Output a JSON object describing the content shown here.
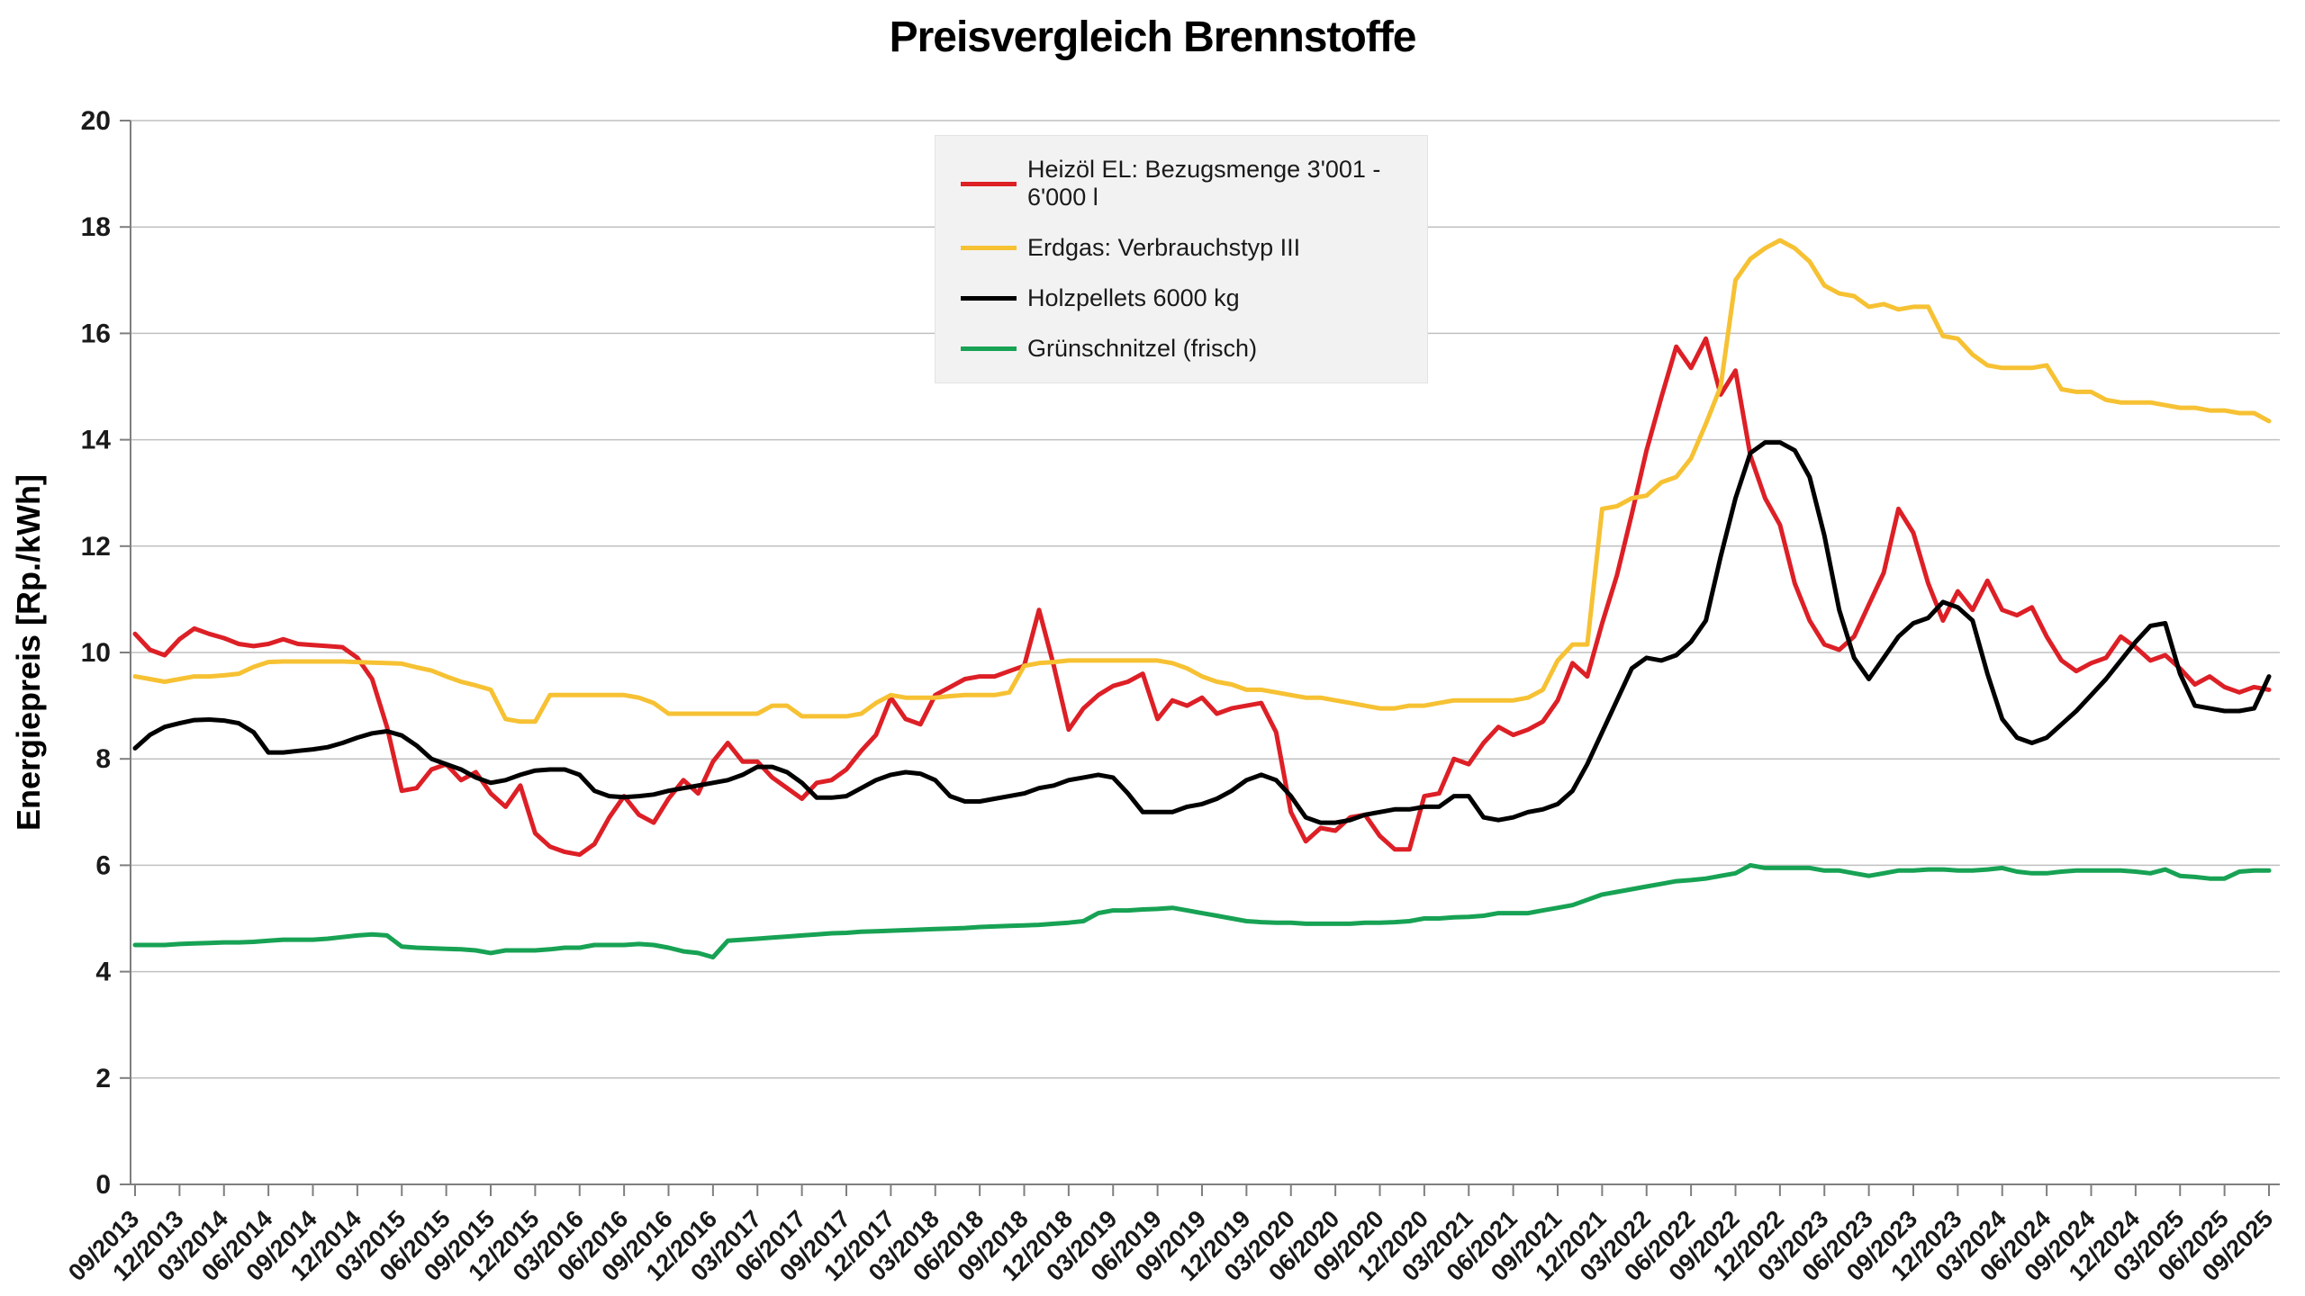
{
  "title": "Preisvergleich Brennstoffe",
  "y_axis_title": "Energiepreis [Rp./kWh]",
  "colors": {
    "heizoel": "#dd1f26",
    "erdgas": "#f6c133",
    "holzpellets": "#000000",
    "gruenschnitzel": "#17a254",
    "grid": "#c0c0c0",
    "axis": "#7f7f7f",
    "tick_text": "#1a1a1a",
    "legend_bg": "#f2f2f2"
  },
  "legend": {
    "items": [
      {
        "key": "heizoel",
        "label": "Heizöl EL: Bezugsmenge 3'001 - 6'000 l"
      },
      {
        "key": "erdgas",
        "label": "Erdgas: Verbrauchstyp III"
      },
      {
        "key": "holzpellets",
        "label": "Holzpellets 6000 kg"
      },
      {
        "key": "gruenschnitzel",
        "label": "Grünschnitzel (frisch)"
      }
    ]
  },
  "chart_data": {
    "type": "line",
    "title": "Preisvergleich Brennstoffe",
    "xlabel": "",
    "ylabel": "Energiepreis [Rp./kWh]",
    "ylim": [
      0,
      20
    ],
    "y_tick_step": 2,
    "grid": true,
    "legend_position": "top-center",
    "x_frequency": "monthly",
    "x_start": "09/2013",
    "x_end": "09/2025",
    "x_tick_labels": [
      "09/2013",
      "12/2013",
      "03/2014",
      "06/2014",
      "09/2014",
      "12/2014",
      "03/2015",
      "06/2015",
      "09/2015",
      "12/2015",
      "03/2016",
      "06/2016",
      "09/2016",
      "12/2016",
      "03/2017",
      "06/2017",
      "09/2017",
      "12/2017",
      "03/2018",
      "06/2018",
      "09/2018",
      "12/2018",
      "03/2019",
      "06/2019",
      "09/2019",
      "12/2019",
      "03/2020",
      "06/2020",
      "09/2020",
      "12/2020",
      "03/2021",
      "06/2021",
      "09/2021",
      "12/2021",
      "03/2022",
      "06/2022",
      "09/2022",
      "12/2022",
      "03/2023",
      "06/2023",
      "09/2023",
      "12/2023",
      "03/2024",
      "06/2024",
      "09/2024",
      "12/2024",
      "03/2025",
      "06/2025",
      "09/2025"
    ],
    "series": [
      {
        "name": "Heizöl EL: Bezugsmenge 3'001 - 6'000 l",
        "color_key": "heizoel",
        "values": [
          10.35,
          10.05,
          9.95,
          10.25,
          10.45,
          10.35,
          10.27,
          10.16,
          10.12,
          10.16,
          10.25,
          10.16,
          10.14,
          10.12,
          10.1,
          9.9,
          9.5,
          8.6,
          7.4,
          7.45,
          7.8,
          7.9,
          7.6,
          7.75,
          7.35,
          7.1,
          7.5,
          6.6,
          6.35,
          6.25,
          6.2,
          6.4,
          6.9,
          7.3,
          6.95,
          6.8,
          7.25,
          7.6,
          7.35,
          7.95,
          8.3,
          7.95,
          7.95,
          7.65,
          7.45,
          7.25,
          7.55,
          7.6,
          7.8,
          8.15,
          8.45,
          9.15,
          8.75,
          8.65,
          9.2,
          9.35,
          9.5,
          9.55,
          9.55,
          9.65,
          9.75,
          10.8,
          9.75,
          8.55,
          8.95,
          9.2,
          9.37,
          9.45,
          9.6,
          8.75,
          9.1,
          9.0,
          9.15,
          8.85,
          8.95,
          9.0,
          9.05,
          8.5,
          7.0,
          6.45,
          6.7,
          6.65,
          6.9,
          6.95,
          6.55,
          6.3,
          6.3,
          7.3,
          7.35,
          8.0,
          7.9,
          8.3,
          8.6,
          8.45,
          8.55,
          8.7,
          9.1,
          9.8,
          9.55,
          10.55,
          11.45,
          12.6,
          13.8,
          14.8,
          15.75,
          15.35,
          15.9,
          14.85,
          15.3,
          13.7,
          12.9,
          12.4,
          11.3,
          10.6,
          10.15,
          10.05,
          10.3,
          10.9,
          11.5,
          12.7,
          12.25,
          11.3,
          10.6,
          11.15,
          10.8,
          11.35,
          10.8,
          10.7,
          10.85,
          10.3,
          9.85,
          9.65,
          9.8,
          9.9,
          10.3,
          10.1,
          9.85,
          9.95,
          9.7,
          9.4,
          9.55,
          9.35,
          9.25,
          9.35,
          9.3
        ]
      },
      {
        "name": "Erdgas: Verbrauchstyp III",
        "color_key": "erdgas",
        "values": [
          9.55,
          9.5,
          9.45,
          9.5,
          9.55,
          9.55,
          9.57,
          9.6,
          9.73,
          9.82,
          9.83,
          9.83,
          9.83,
          9.83,
          9.83,
          9.82,
          9.81,
          9.8,
          9.79,
          9.72,
          9.66,
          9.55,
          9.45,
          9.38,
          9.3,
          8.75,
          8.7,
          8.7,
          9.2,
          9.2,
          9.2,
          9.2,
          9.2,
          9.2,
          9.15,
          9.05,
          8.85,
          8.85,
          8.85,
          8.85,
          8.85,
          8.85,
          8.85,
          9.0,
          9.0,
          8.8,
          8.8,
          8.8,
          8.8,
          8.85,
          9.05,
          9.2,
          9.15,
          9.15,
          9.15,
          9.18,
          9.2,
          9.2,
          9.2,
          9.25,
          9.75,
          9.8,
          9.82,
          9.85,
          9.85,
          9.85,
          9.85,
          9.85,
          9.85,
          9.85,
          9.8,
          9.7,
          9.55,
          9.45,
          9.4,
          9.3,
          9.3,
          9.25,
          9.2,
          9.15,
          9.15,
          9.1,
          9.05,
          9.0,
          8.95,
          8.95,
          9.0,
          9.0,
          9.05,
          9.1,
          9.1,
          9.1,
          9.1,
          9.1,
          9.15,
          9.3,
          9.85,
          10.15,
          10.15,
          12.7,
          12.75,
          12.9,
          12.95,
          13.2,
          13.3,
          13.65,
          14.3,
          15.0,
          17.0,
          17.4,
          17.6,
          17.75,
          17.6,
          17.35,
          16.9,
          16.75,
          16.7,
          16.5,
          16.55,
          16.45,
          16.5,
          16.5,
          15.95,
          15.9,
          15.6,
          15.4,
          15.35,
          15.35,
          15.35,
          15.4,
          14.95,
          14.9,
          14.9,
          14.75,
          14.7,
          14.7,
          14.7,
          14.65,
          14.6,
          14.6,
          14.55,
          14.55,
          14.5,
          14.5,
          14.35
        ]
      },
      {
        "name": "Holzpellets 6000 kg",
        "color_key": "holzpellets",
        "values": [
          8.2,
          8.45,
          8.6,
          8.67,
          8.73,
          8.74,
          8.72,
          8.67,
          8.5,
          8.12,
          8.12,
          8.15,
          8.18,
          8.22,
          8.3,
          8.4,
          8.48,
          8.52,
          8.44,
          8.25,
          8.0,
          7.9,
          7.8,
          7.65,
          7.55,
          7.6,
          7.7,
          7.78,
          7.8,
          7.8,
          7.7,
          7.4,
          7.3,
          7.28,
          7.3,
          7.33,
          7.4,
          7.45,
          7.5,
          7.55,
          7.6,
          7.7,
          7.85,
          7.85,
          7.75,
          7.55,
          7.27,
          7.27,
          7.3,
          7.45,
          7.6,
          7.7,
          7.75,
          7.72,
          7.6,
          7.3,
          7.2,
          7.2,
          7.25,
          7.3,
          7.35,
          7.45,
          7.5,
          7.6,
          7.65,
          7.7,
          7.65,
          7.35,
          7.0,
          7.0,
          7.0,
          7.1,
          7.15,
          7.25,
          7.4,
          7.6,
          7.7,
          7.6,
          7.3,
          6.9,
          6.8,
          6.8,
          6.85,
          6.95,
          7.0,
          7.05,
          7.05,
          7.1,
          7.1,
          7.3,
          7.3,
          6.9,
          6.85,
          6.9,
          7.0,
          7.05,
          7.15,
          7.4,
          7.9,
          8.5,
          9.1,
          9.7,
          9.9,
          9.85,
          9.95,
          10.2,
          10.6,
          11.8,
          12.9,
          13.75,
          13.95,
          13.95,
          13.8,
          13.3,
          12.2,
          10.8,
          9.9,
          9.5,
          9.9,
          10.3,
          10.55,
          10.65,
          10.95,
          10.85,
          10.6,
          9.6,
          8.75,
          8.4,
          8.3,
          8.4,
          8.65,
          8.9,
          9.2,
          9.5,
          9.85,
          10.2,
          10.5,
          10.55,
          9.6,
          9.0,
          8.95,
          8.9,
          8.9,
          8.95,
          9.55
        ]
      },
      {
        "name": "Grünschnitzel (frisch)",
        "color_key": "gruenschnitzel",
        "values": [
          4.5,
          4.5,
          4.5,
          4.52,
          4.53,
          4.54,
          4.55,
          4.55,
          4.56,
          4.58,
          4.6,
          4.6,
          4.6,
          4.62,
          4.65,
          4.68,
          4.7,
          4.68,
          4.47,
          4.45,
          4.44,
          4.43,
          4.42,
          4.4,
          4.35,
          4.4,
          4.4,
          4.4,
          4.42,
          4.45,
          4.45,
          4.5,
          4.5,
          4.5,
          4.52,
          4.5,
          4.45,
          4.38,
          4.35,
          4.27,
          4.58,
          4.6,
          4.62,
          4.64,
          4.66,
          4.68,
          4.7,
          4.72,
          4.73,
          4.75,
          4.76,
          4.77,
          4.78,
          4.79,
          4.8,
          4.81,
          4.82,
          4.84,
          4.85,
          4.86,
          4.87,
          4.88,
          4.9,
          4.92,
          4.95,
          5.1,
          5.15,
          5.15,
          5.17,
          5.18,
          5.2,
          5.15,
          5.1,
          5.05,
          5.0,
          4.95,
          4.93,
          4.92,
          4.92,
          4.9,
          4.9,
          4.9,
          4.9,
          4.92,
          4.92,
          4.93,
          4.95,
          5.0,
          5.0,
          5.02,
          5.03,
          5.05,
          5.1,
          5.1,
          5.1,
          5.15,
          5.2,
          5.25,
          5.35,
          5.45,
          5.5,
          5.55,
          5.6,
          5.65,
          5.7,
          5.72,
          5.75,
          5.8,
          5.85,
          6.0,
          5.95,
          5.95,
          5.95,
          5.95,
          5.9,
          5.9,
          5.85,
          5.8,
          5.85,
          5.9,
          5.9,
          5.92,
          5.92,
          5.9,
          5.9,
          5.92,
          5.95,
          5.88,
          5.85,
          5.85,
          5.88,
          5.9,
          5.9,
          5.9,
          5.9,
          5.88,
          5.85,
          5.92,
          5.8,
          5.78,
          5.75,
          5.75,
          5.88,
          5.9,
          5.9
        ]
      }
    ]
  }
}
